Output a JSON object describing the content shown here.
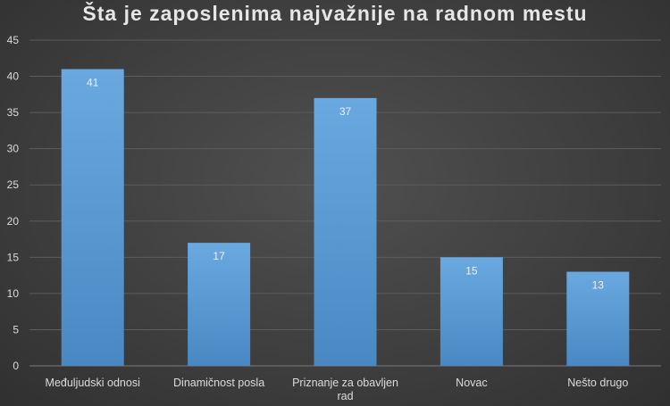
{
  "chart_data": {
    "type": "bar",
    "title": "Šta je zaposlenima najvažnije na radnom mestu",
    "xlabel": "",
    "ylabel": "",
    "categories": [
      "Međuljudski odnosi",
      "Dinamičnost posla",
      "Priznanje za obavljen rad",
      "Novac",
      "Nešto drugo"
    ],
    "values": [
      41,
      17,
      37,
      15,
      13
    ],
    "ylim": [
      0,
      45
    ],
    "yticks": [
      0,
      5,
      10,
      15,
      20,
      25,
      30,
      35,
      40,
      45
    ],
    "grid": true,
    "legend": "none",
    "data_labels": true,
    "colors": {
      "bar": "#5b9bd5",
      "bar_light": "#6aa8e0",
      "background": "#404040",
      "text": "#dcdcdc"
    }
  }
}
